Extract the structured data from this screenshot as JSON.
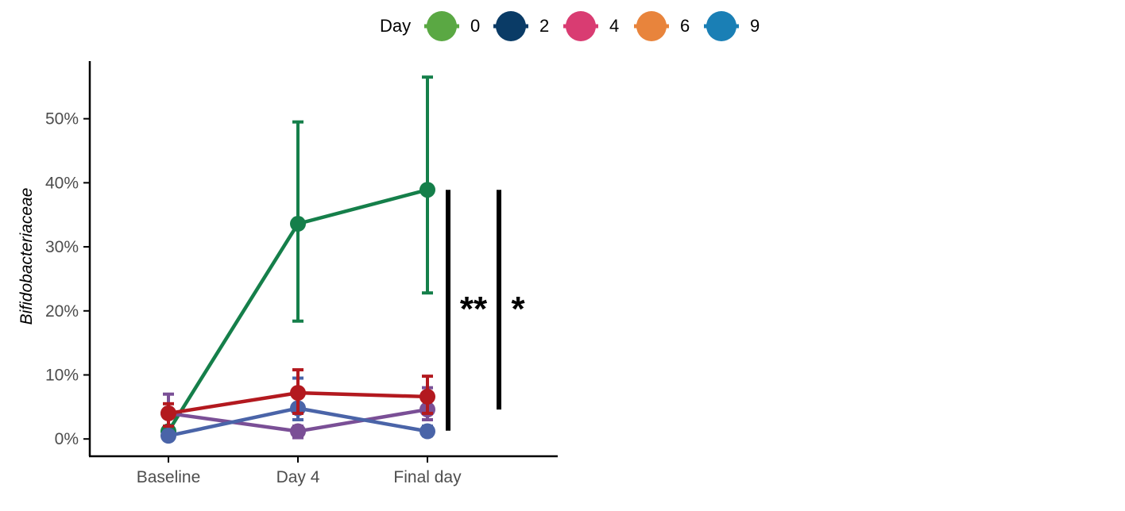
{
  "chart_data": {
    "type": "line",
    "title": "",
    "xlabel": "",
    "ylabel": "Bifidobacteriaceae",
    "categories": [
      "Baseline",
      "Day 4",
      "Final day"
    ],
    "ylim": [
      -0.027,
      0.59
    ],
    "yticks": [
      0,
      0.1,
      0.2,
      0.3,
      0.4,
      0.5
    ],
    "ytick_labels": [
      "0%",
      "10%",
      "20%",
      "30%",
      "40%",
      "50%"
    ],
    "grid": false,
    "legend": {
      "title": "Day",
      "position": "top",
      "entries": [
        {
          "label": "0",
          "color": "#5aa843"
        },
        {
          "label": "2",
          "color": "#0a3b66"
        },
        {
          "label": "4",
          "color": "#d93c72"
        },
        {
          "label": "6",
          "color": "#e8843c"
        },
        {
          "label": "9",
          "color": "#1a7fb5"
        }
      ]
    },
    "series": [
      {
        "color": "#157f4a",
        "values": [
          0.012,
          0.336,
          0.389
        ],
        "err_low": [
          0.005,
          0.184,
          0.228
        ],
        "err_high": [
          0.018,
          0.495,
          0.565
        ]
      },
      {
        "color": "#7a4f96",
        "values": [
          0.04,
          0.012,
          0.046
        ],
        "err_low": [
          0.01,
          0.002,
          0.03
        ],
        "err_high": [
          0.07,
          0.02,
          0.08
        ]
      },
      {
        "color": "#4a64a8",
        "values": [
          0.005,
          0.048,
          0.012
        ],
        "err_low": [
          0.0,
          0.03,
          0.005
        ],
        "err_high": [
          0.01,
          0.095,
          0.02
        ]
      },
      {
        "color": "#b3191f",
        "values": [
          0.04,
          0.072,
          0.066
        ],
        "err_low": [
          0.02,
          0.04,
          0.04
        ],
        "err_high": [
          0.055,
          0.108,
          0.098
        ]
      }
    ],
    "annotations": [
      {
        "text": "**",
        "y_from": 0.013,
        "y_to": 0.389
      },
      {
        "text": "*",
        "y_from": 0.046,
        "y_to": 0.389
      }
    ]
  }
}
